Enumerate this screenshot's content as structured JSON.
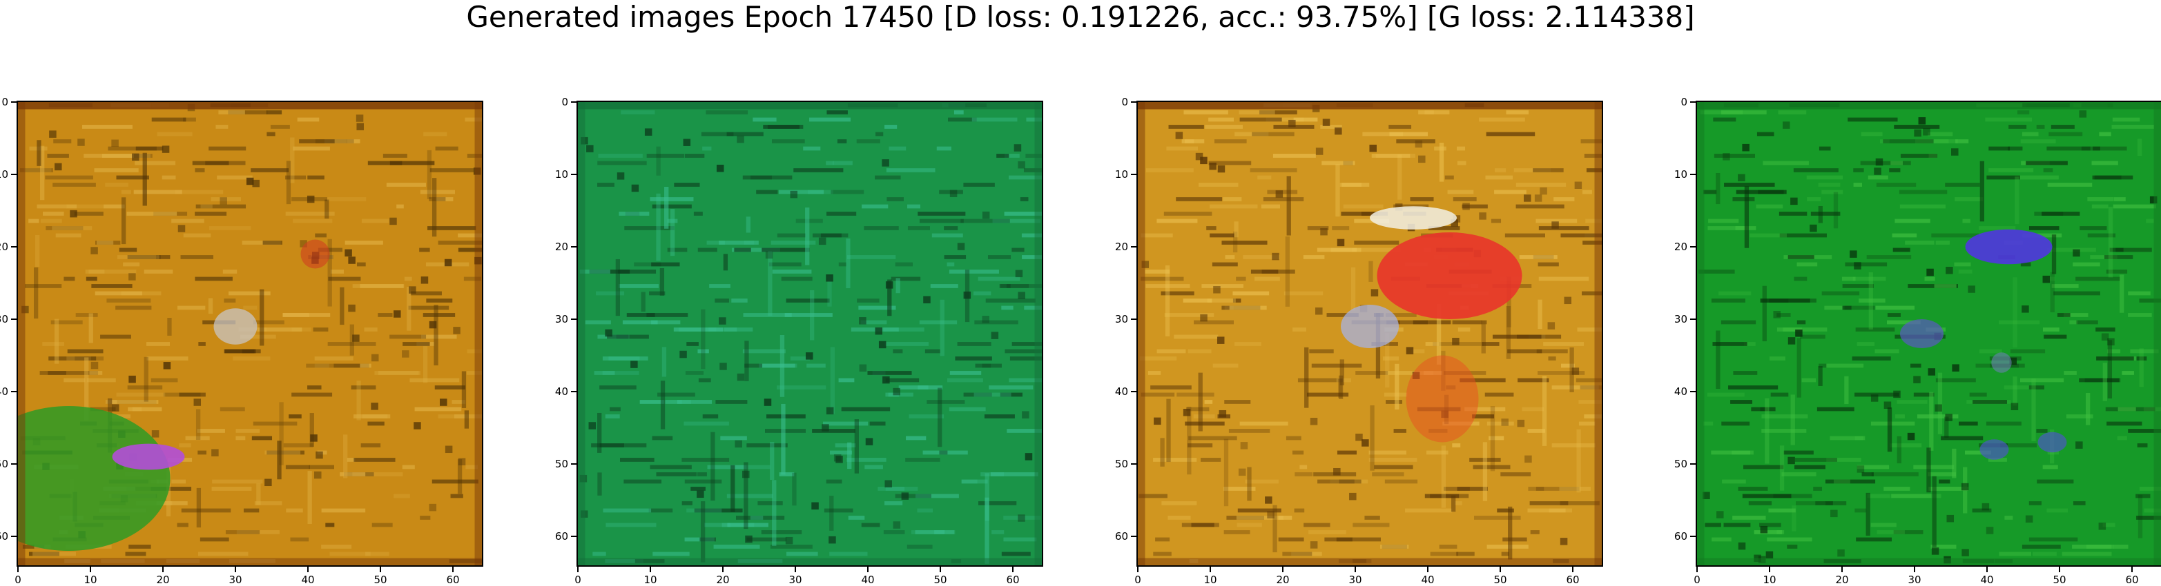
{
  "title": "Generated images Epoch 17450 [D loss: 0.191226, acc.: 93.75%] [G loss: 2.114338]",
  "axes": {
    "x_ticks": [
      "0",
      "10",
      "20",
      "30",
      "40",
      "50",
      "60"
    ],
    "y_ticks": [
      "0",
      "10",
      "20",
      "30",
      "40",
      "50",
      "60"
    ],
    "range": [
      0,
      64
    ]
  },
  "panels": [
    {
      "name": "generated-image-1",
      "palette": {
        "base": "#c98a16",
        "light": "#e0b043",
        "dark": "#4f3206",
        "edge": "#7a3a08"
      },
      "blobs": [
        {
          "fill": "#2f9a24",
          "cx": 7,
          "cy": 52,
          "rx": 14,
          "ry": 10,
          "opacity": 0.85
        },
        {
          "fill": "#b24ed8",
          "cx": 18,
          "cy": 49,
          "rx": 5,
          "ry": 1.8,
          "opacity": 0.9
        },
        {
          "fill": "#c9c9ce",
          "cx": 30,
          "cy": 31,
          "rx": 3,
          "ry": 2.5,
          "opacity": 0.7
        },
        {
          "fill": "#d04020",
          "cx": 41,
          "cy": 21,
          "rx": 2,
          "ry": 2,
          "opacity": 0.6
        }
      ]
    },
    {
      "name": "generated-image-2",
      "palette": {
        "base": "#1a9448",
        "light": "#3ac090",
        "dark": "#0c3a1c",
        "edge": "#14703a"
      },
      "blobs": []
    },
    {
      "name": "generated-image-3",
      "palette": {
        "base": "#d09620",
        "light": "#ebc050",
        "dark": "#5a3606",
        "edge": "#7a3a08"
      },
      "blobs": [
        {
          "fill": "#e8342a",
          "cx": 43,
          "cy": 24,
          "rx": 10,
          "ry": 6,
          "opacity": 0.9
        },
        {
          "fill": "#f2f0e4",
          "cx": 38,
          "cy": 16,
          "rx": 6,
          "ry": 1.6,
          "opacity": 0.85
        },
        {
          "fill": "#a8b2e0",
          "cx": 32,
          "cy": 31,
          "rx": 4,
          "ry": 3,
          "opacity": 0.75
        },
        {
          "fill": "#e85020",
          "cx": 42,
          "cy": 41,
          "rx": 5,
          "ry": 6,
          "opacity": 0.5
        }
      ]
    },
    {
      "name": "generated-image-4",
      "palette": {
        "base": "#169a28",
        "light": "#40c040",
        "dark": "#07320c",
        "edge": "#127a20"
      },
      "blobs": [
        {
          "fill": "#5036e0",
          "cx": 43,
          "cy": 20,
          "rx": 6,
          "ry": 2.4,
          "opacity": 0.9
        },
        {
          "fill": "#5a58c0",
          "cx": 31,
          "cy": 32,
          "rx": 3,
          "ry": 2,
          "opacity": 0.7
        },
        {
          "fill": "#4a58c0",
          "cx": 41,
          "cy": 48,
          "rx": 2,
          "ry": 1.4,
          "opacity": 0.7
        },
        {
          "fill": "#4a58c0",
          "cx": 49,
          "cy": 47,
          "rx": 2,
          "ry": 1.4,
          "opacity": 0.7
        },
        {
          "fill": "#6a80b0",
          "cx": 42,
          "cy": 36,
          "rx": 1.4,
          "ry": 1.4,
          "opacity": 0.6
        }
      ]
    }
  ]
}
